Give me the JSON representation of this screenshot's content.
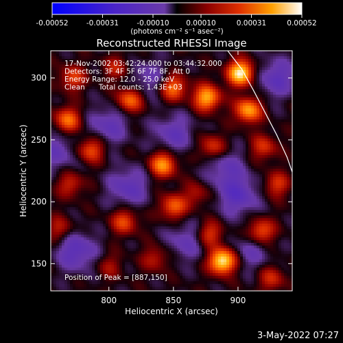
{
  "chart_data": {
    "type": "heatmap",
    "title": "Reconstructed RHESSI Image",
    "xlabel": "Heliocentric X (arcsec)",
    "ylabel": "Heliocentric Y (arcsec)",
    "xlim": [
      755,
      942
    ],
    "ylim": [
      128,
      322
    ],
    "x_ticks": [
      800,
      850,
      900
    ],
    "y_ticks": [
      150,
      200,
      250,
      300
    ],
    "annotations": [
      "17-Nov-2002 03:42:24.000 to 03:44:32.000",
      "Detectors: 3F 4F 5F 6F 7F 8F, Att 0",
      "Energy Range: 12.0 - 25.0 keV",
      "Clean      Total counts: 1.43E+03"
    ],
    "peak_label": "Position of Peak = [887,150]",
    "peak_position": [
      887,
      150
    ],
    "colorbar": {
      "ticks": [
        "-0.00052",
        "-0.00031",
        "-0.00010",
        "0.00010",
        "0.00031",
        "0.00052"
      ],
      "tick_values": [
        -0.00052,
        -0.00031,
        -0.0001,
        0.0001,
        0.00031,
        0.00052
      ],
      "range": [
        -0.00052,
        0.00052
      ],
      "unit_label": "(photons cm⁻² s⁻¹ asec⁻²)",
      "colormap": "hot-with-blue-negatives"
    },
    "hotspots": [
      {
        "x": 888,
        "y": 152,
        "value": 0.00052
      },
      {
        "x": 902,
        "y": 304,
        "value": 0.0005
      },
      {
        "x": 876,
        "y": 284,
        "value": 0.0004
      },
      {
        "x": 908,
        "y": 274,
        "value": 0.00038
      },
      {
        "x": 842,
        "y": 230,
        "value": 0.00036
      },
      {
        "x": 768,
        "y": 266,
        "value": 0.0003
      },
      {
        "x": 786,
        "y": 242,
        "value": 0.00026
      },
      {
        "x": 816,
        "y": 282,
        "value": 0.0003
      },
      {
        "x": 850,
        "y": 292,
        "value": 0.0003
      },
      {
        "x": 850,
        "y": 196,
        "value": 0.00028
      },
      {
        "x": 812,
        "y": 184,
        "value": 0.00024
      },
      {
        "x": 880,
        "y": 244,
        "value": 0.00022
      },
      {
        "x": 920,
        "y": 244,
        "value": 0.0002
      },
      {
        "x": 918,
        "y": 176,
        "value": 0.00028
      },
      {
        "x": 770,
        "y": 214,
        "value": 0.00018
      },
      {
        "x": 762,
        "y": 178,
        "value": 0.00016
      },
      {
        "x": 800,
        "y": 148,
        "value": 0.00012
      },
      {
        "x": 926,
        "y": 138,
        "value": 0.00018
      },
      {
        "x": 868,
        "y": 206,
        "value": 0.00014
      },
      {
        "x": 836,
        "y": 154,
        "value": 0.00016
      },
      {
        "x": 930,
        "y": 214,
        "value": 0.0002
      },
      {
        "x": 772,
        "y": 300,
        "value": 0.00022
      },
      {
        "x": 878,
        "y": 174,
        "value": 0.00022
      },
      {
        "x": 806,
        "y": 308,
        "value": 0.00016
      }
    ],
    "coldspots": [
      {
        "x": 775,
        "y": 160,
        "value": -0.0002
      },
      {
        "x": 815,
        "y": 212,
        "value": -0.00018
      },
      {
        "x": 850,
        "y": 255,
        "value": -0.00016
      },
      {
        "x": 900,
        "y": 205,
        "value": -0.0002
      },
      {
        "x": 800,
        "y": 262,
        "value": -0.00016
      },
      {
        "x": 860,
        "y": 168,
        "value": -0.00014
      },
      {
        "x": 930,
        "y": 300,
        "value": -0.00018
      },
      {
        "x": 830,
        "y": 300,
        "value": -0.00012
      },
      {
        "x": 760,
        "y": 240,
        "value": -0.00014
      },
      {
        "x": 910,
        "y": 160,
        "value": -0.00012
      },
      {
        "x": 890,
        "y": 228,
        "value": -0.00014
      }
    ],
    "limb_curve": [
      [
        892,
        322
      ],
      [
        903,
        307
      ],
      [
        912,
        290
      ],
      [
        921,
        272
      ],
      [
        930,
        254
      ],
      [
        938,
        236
      ],
      [
        942,
        224
      ]
    ]
  },
  "footer": {
    "date": "3-May-2022 07:27"
  }
}
